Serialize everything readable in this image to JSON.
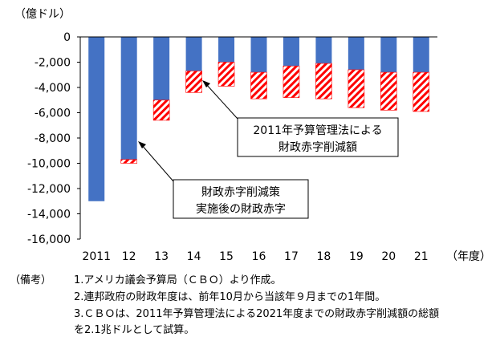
{
  "chart_data": {
    "type": "bar",
    "stacked": true,
    "y_unit_label": "（億ドル）",
    "x_unit_label": "（年度）",
    "categories": [
      "2011",
      "12",
      "13",
      "14",
      "15",
      "16",
      "17",
      "18",
      "19",
      "20",
      "21"
    ],
    "series": [
      {
        "name": "財政赤字削減策実施後の財政赤字",
        "color": "#4472C4",
        "values": [
          -13000,
          -9700,
          -5000,
          -2700,
          -2000,
          -2800,
          -2300,
          -2100,
          -2600,
          -2800,
          -2800
        ]
      },
      {
        "name": "2011年予算管理法による財政赤字削減額",
        "color": "#FF0000",
        "pattern": "diagonal-hatch",
        "values": [
          0,
          -300,
          -1600,
          -1700,
          -1900,
          -2100,
          -2500,
          -2800,
          -3000,
          -3000,
          -3100
        ]
      }
    ],
    "ylim": [
      -16000,
      0
    ],
    "yticks": [
      0,
      -2000,
      -4000,
      -6000,
      -8000,
      -10000,
      -12000,
      -14000,
      -16000
    ],
    "ytick_labels": [
      "0",
      "-2,000",
      "-4,000",
      "-6,000",
      "-8,000",
      "-10,000",
      "-12,000",
      "-14,000",
      "-16,000"
    ],
    "grid": false
  },
  "callouts": {
    "reduction": [
      "2011年予算管理法による",
      "財政赤字削減額"
    ],
    "deficit": [
      "財政赤字削減策",
      "実施後の財政赤字"
    ]
  },
  "notes": {
    "label": "（備考）",
    "items": [
      [
        "1.",
        "アメリカ議会予算局（ＣＢＯ）より作成。"
      ],
      [
        "2.",
        "連邦政府の財政年度は、前年10月から当該年９月までの1年間。"
      ],
      [
        "3.",
        "ＣＢＯは、2011年予算管理法による2021年度までの財政赤字削減額の総額"
      ],
      [
        "",
        "を2.1兆ドルとして試算。"
      ]
    ]
  }
}
